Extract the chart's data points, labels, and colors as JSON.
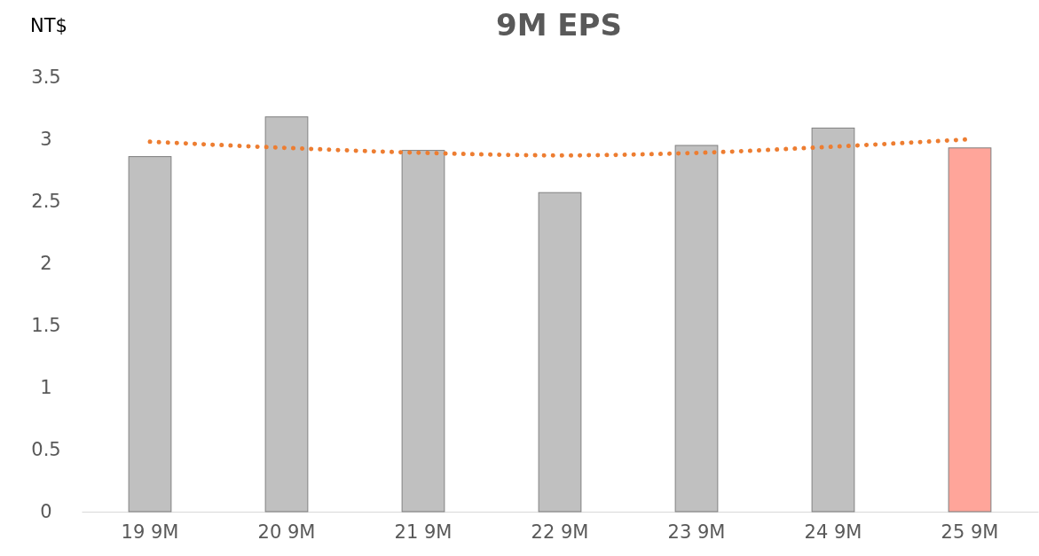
{
  "chart_data": {
    "type": "bar",
    "title": "9M EPS",
    "ylabel": "NT$",
    "categories": [
      "19 9M",
      "20 9M",
      "21 9M",
      "22 9M",
      "23 9M",
      "24 9M",
      "25 9M"
    ],
    "series": [
      {
        "colors": [
          "#c0c0c0",
          "#c0c0c0",
          "#c0c0c0",
          "#c0c0c0",
          "#c0c0c0",
          "#c0c0c0",
          "#ffa59a"
        ],
        "values": [
          2.86,
          3.18,
          2.91,
          2.57,
          2.95,
          3.09,
          2.93
        ]
      },
      {
        "type": "line",
        "color": "#ed7d31",
        "line_style": "dotted",
        "values": [
          2.98,
          2.93,
          2.89,
          2.87,
          2.89,
          2.94,
          3.0
        ]
      }
    ],
    "ylim": [
      0,
      3.5
    ],
    "yticks": [
      0,
      0.5,
      1,
      1.5,
      2,
      2.5,
      3,
      3.5
    ],
    "grid": false
  }
}
